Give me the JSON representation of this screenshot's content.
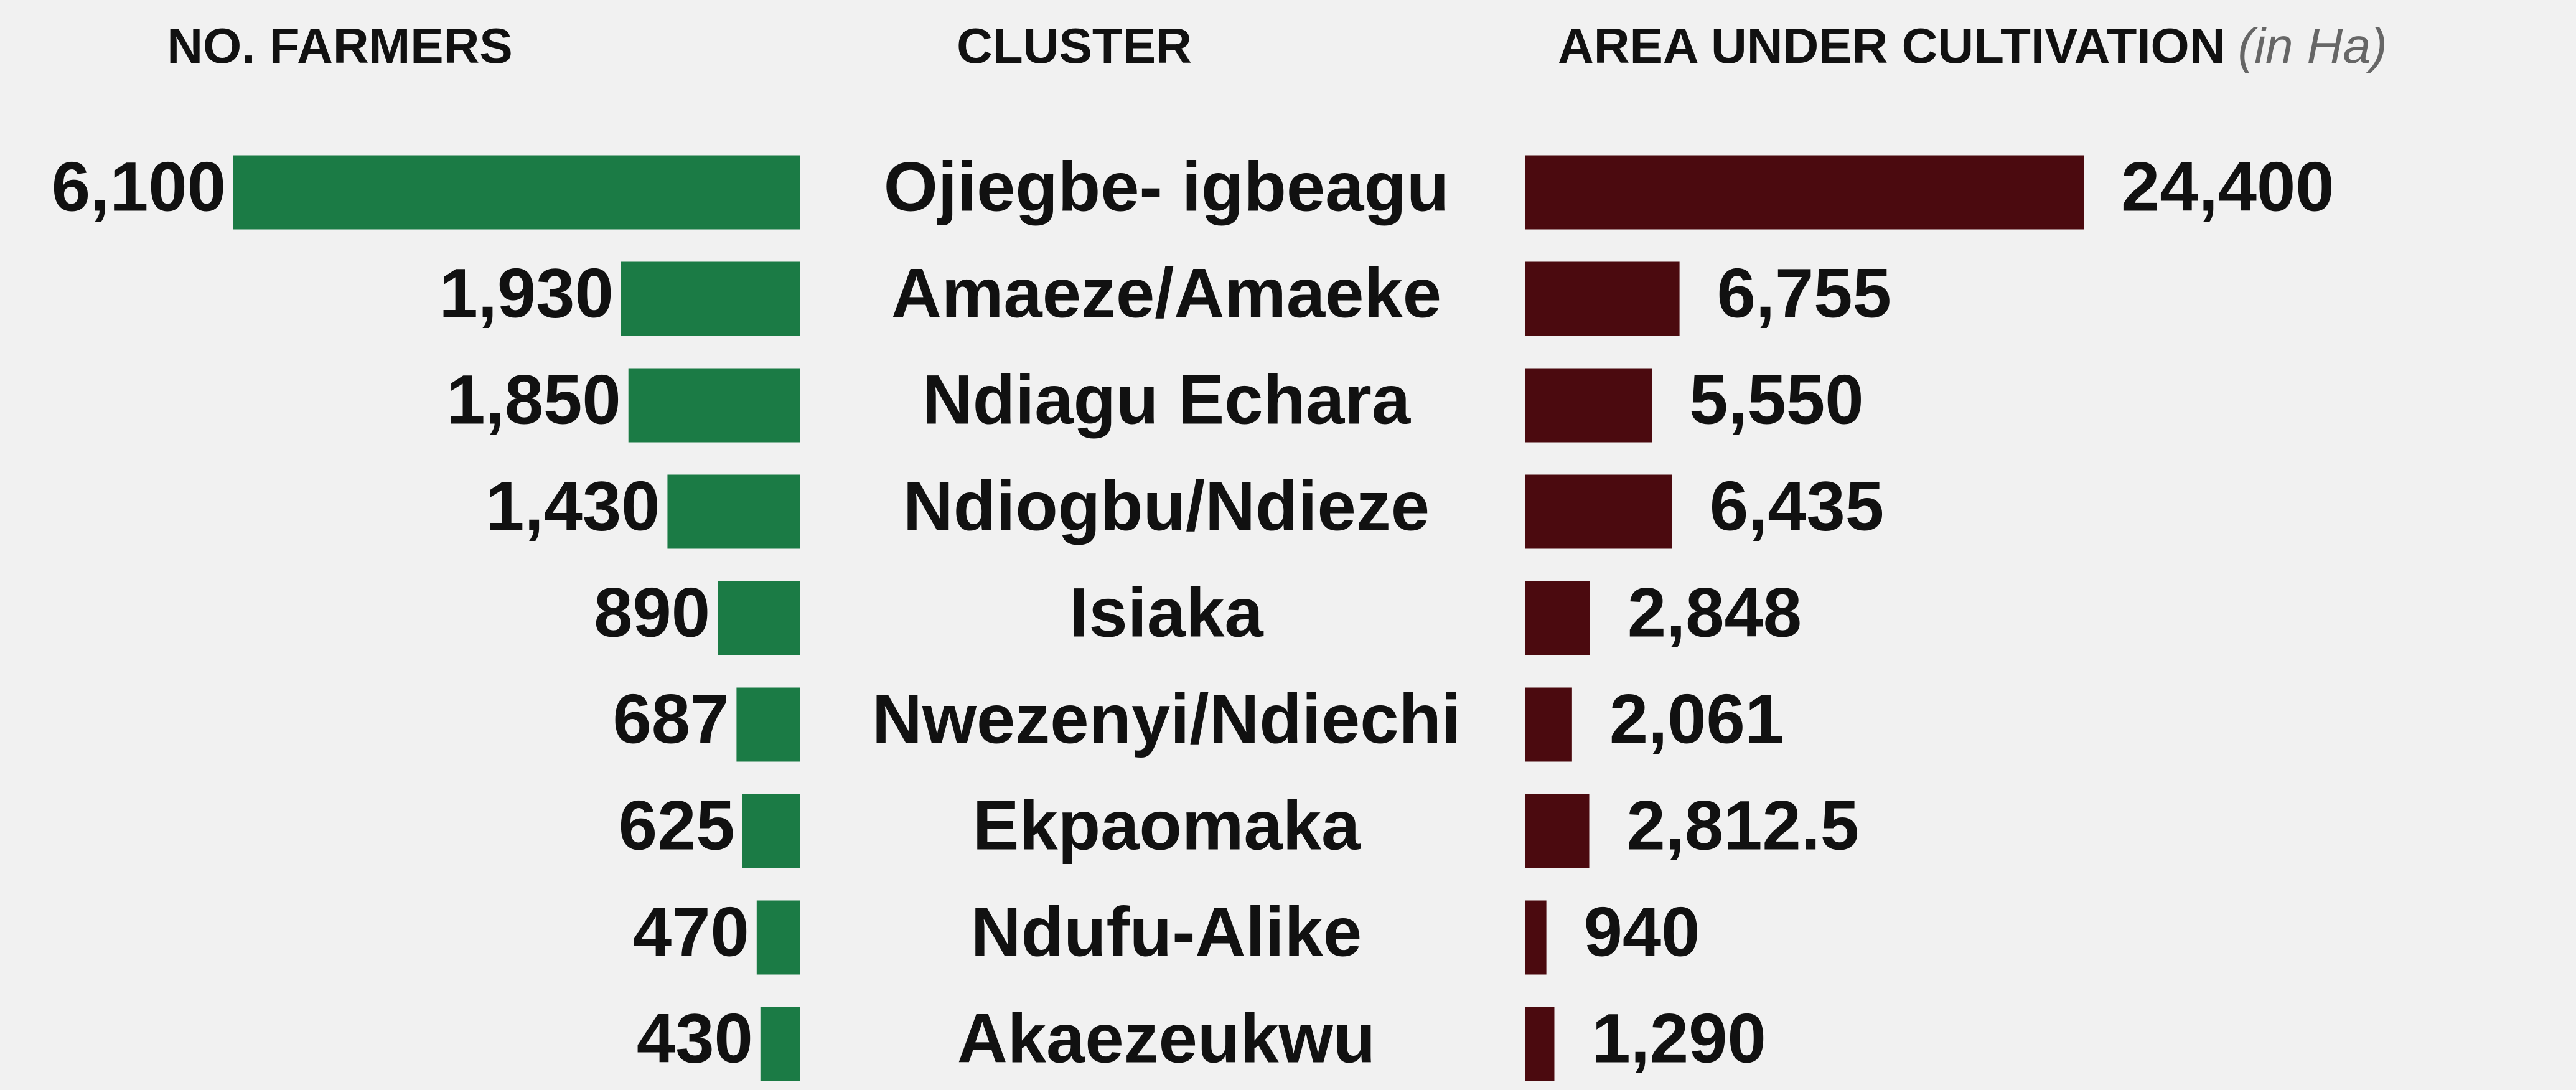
{
  "chart_data": {
    "type": "butterfly-bar",
    "categories_title": "CLUSTER",
    "unit": "(in Ha)",
    "categories": [
      "Ojiegbe- igbeagu",
      "Amaeze/Amaeke",
      "Ndiagu Echara",
      "Ndiogbu/Ndieze",
      "Isiaka",
      "Nwezenyi/Ndiechi",
      "Ekpaomaka",
      "Ndufu-Alike",
      "Akaezeukwu"
    ],
    "series": [
      {
        "name": "NO. FARMERS",
        "color": "#1b7b45",
        "values": [
          6100,
          1930,
          1850,
          1430,
          890,
          687,
          625,
          470,
          430
        ],
        "value_labels": [
          "6,100",
          "1,930",
          "1,850",
          "1,430",
          "890",
          "687",
          "625",
          "470",
          "430"
        ]
      },
      {
        "name": "AREA UNDER CULTIVATION",
        "color": "#4b0a0f",
        "values": [
          24400,
          6755,
          5550,
          6435,
          2848,
          2061,
          2812.5,
          940,
          1290
        ],
        "value_labels": [
          "24,400",
          "6,755",
          "5,550",
          "6,435",
          "2,848",
          "2,061",
          "2,812.5",
          "940",
          "1,290"
        ]
      }
    ]
  }
}
